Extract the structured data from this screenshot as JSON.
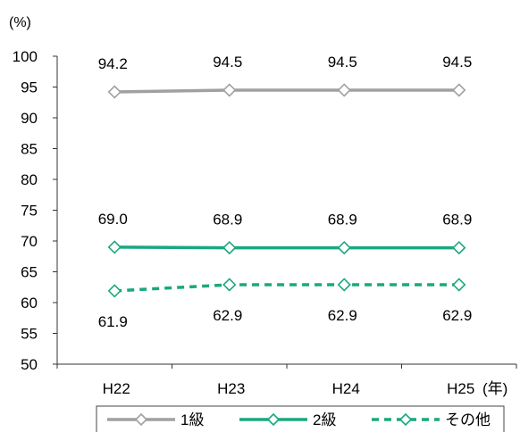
{
  "chart_data": {
    "type": "line",
    "title": "",
    "ylabel": "",
    "y_unit": "(%)",
    "x_unit": "(年)",
    "categories": [
      "H22",
      "H23",
      "H24",
      "H25"
    ],
    "ylim": [
      50,
      100
    ],
    "yticks": [
      50,
      55,
      60,
      65,
      70,
      75,
      80,
      85,
      90,
      95,
      100
    ],
    "grid": false,
    "legend_position": "bottom",
    "series": [
      {
        "name": "1級",
        "values": [
          94.2,
          94.5,
          94.5,
          94.5
        ],
        "labels": [
          "94.2",
          "94.5",
          "94.5",
          "94.5"
        ],
        "label_position": "above",
        "color": "#a0a0a0",
        "dash": "solid",
        "marker": "diamond-open"
      },
      {
        "name": "2級",
        "values": [
          69.0,
          68.9,
          68.9,
          68.9
        ],
        "labels": [
          "69.0",
          "68.9",
          "68.9",
          "68.9"
        ],
        "label_position": "above",
        "color": "#1aa87e",
        "dash": "solid",
        "marker": "diamond-open"
      },
      {
        "name": "その他",
        "values": [
          61.9,
          62.9,
          62.9,
          62.9
        ],
        "labels": [
          "61.9",
          "62.9",
          "62.9",
          "62.9"
        ],
        "label_position": "below",
        "color": "#1aa87e",
        "dash": "dashed",
        "marker": "diamond-open"
      }
    ]
  }
}
